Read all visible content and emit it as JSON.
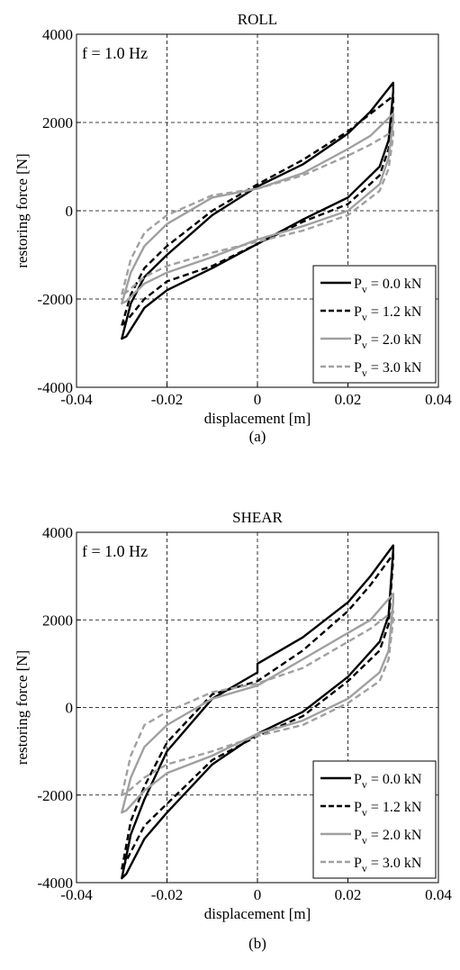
{
  "chart_data": [
    {
      "type": "line",
      "title": "ROLL",
      "xlabel": "displacement [m]",
      "ylabel": "restoring force [N]",
      "xlim": [
        -0.04,
        0.04
      ],
      "ylim": [
        -4000,
        4000
      ],
      "xticks": [
        -0.04,
        -0.02,
        0,
        0.02,
        0.04
      ],
      "yticks": [
        -4000,
        -2000,
        0,
        2000,
        4000
      ],
      "xtick_labels": [
        "-0.04",
        "-0.02",
        "0",
        "0.02",
        "0.04"
      ],
      "ytick_labels": [
        "-4000",
        "-2000",
        "0",
        "2000",
        "4000"
      ],
      "grid": "dashed",
      "annotation": "f = 1.0 Hz",
      "legend_position": "bottom-right",
      "caption": "(a)",
      "series": [
        {
          "name": "0.0 kN",
          "legend_label": "P",
          "legend_sub": "v",
          "legend_value": " = 0.0 kN",
          "color": "#000000",
          "dash": "solid",
          "upper": [
            [
              -0.03,
              -2900
            ],
            [
              -0.028,
              -2100
            ],
            [
              -0.025,
              -1500
            ],
            [
              -0.02,
              -1000
            ],
            [
              -0.01,
              -100
            ],
            [
              0,
              550
            ],
            [
              0.01,
              1050
            ],
            [
              0.02,
              1750
            ],
            [
              0.025,
              2250
            ],
            [
              0.03,
              2900
            ]
          ],
          "lower": [
            [
              0.03,
              2700
            ],
            [
              0.029,
              1600
            ],
            [
              0.027,
              1000
            ],
            [
              0.02,
              300
            ],
            [
              0.01,
              -200
            ],
            [
              0,
              -750
            ],
            [
              -0.01,
              -1300
            ],
            [
              -0.02,
              -1800
            ],
            [
              -0.025,
              -2200
            ],
            [
              -0.029,
              -2850
            ],
            [
              -0.03,
              -2900
            ]
          ]
        },
        {
          "name": "1.2 kN",
          "legend_label": "P",
          "legend_sub": "v",
          "legend_value": " = 1.2 kN",
          "color": "#000000",
          "dash": "dashed",
          "upper": [
            [
              -0.03,
              -2600
            ],
            [
              -0.028,
              -1900
            ],
            [
              -0.025,
              -1300
            ],
            [
              -0.02,
              -800
            ],
            [
              -0.01,
              0
            ],
            [
              0,
              600
            ],
            [
              0.01,
              1150
            ],
            [
              0.02,
              1800
            ],
            [
              0.025,
              2200
            ],
            [
              0.03,
              2600
            ]
          ],
          "lower": [
            [
              0.03,
              2400
            ],
            [
              0.029,
              1400
            ],
            [
              0.027,
              800
            ],
            [
              0.02,
              150
            ],
            [
              0.01,
              -250
            ],
            [
              0,
              -750
            ],
            [
              -0.01,
              -1250
            ],
            [
              -0.02,
              -1600
            ],
            [
              -0.025,
              -2000
            ],
            [
              -0.029,
              -2500
            ],
            [
              -0.03,
              -2600
            ]
          ]
        },
        {
          "name": "2.0 kN",
          "legend_label": "P",
          "legend_sub": "v",
          "legend_value": " = 2.0 kN",
          "color": "#a0a0a0",
          "dash": "solid",
          "upper": [
            [
              -0.03,
              -2100
            ],
            [
              -0.028,
              -1400
            ],
            [
              -0.025,
              -800
            ],
            [
              -0.02,
              -300
            ],
            [
              -0.01,
              300
            ],
            [
              0,
              500
            ],
            [
              0.01,
              850
            ],
            [
              0.02,
              1400
            ],
            [
              0.025,
              1700
            ],
            [
              0.03,
              2200
            ]
          ],
          "lower": [
            [
              0.03,
              2050
            ],
            [
              0.029,
              1200
            ],
            [
              0.027,
              600
            ],
            [
              0.02,
              0
            ],
            [
              0.01,
              -350
            ],
            [
              0,
              -650
            ],
            [
              -0.01,
              -1050
            ],
            [
              -0.02,
              -1400
            ],
            [
              -0.025,
              -1650
            ],
            [
              -0.029,
              -2050
            ],
            [
              -0.03,
              -2100
            ]
          ]
        },
        {
          "name": "3.0 kN",
          "legend_label": "P",
          "legend_sub": "v",
          "legend_value": " = 3.0 kN",
          "color": "#a0a0a0",
          "dash": "dashed",
          "upper": [
            [
              -0.03,
              -1900
            ],
            [
              -0.028,
              -1100
            ],
            [
              -0.025,
              -500
            ],
            [
              -0.02,
              -100
            ],
            [
              -0.01,
              350
            ],
            [
              0,
              500
            ],
            [
              0.01,
              800
            ],
            [
              0.02,
              1250
            ],
            [
              0.025,
              1500
            ],
            [
              0.03,
              1800
            ]
          ],
          "lower": [
            [
              0.03,
              1700
            ],
            [
              0.029,
              950
            ],
            [
              0.027,
              450
            ],
            [
              0.02,
              -100
            ],
            [
              0.01,
              -450
            ],
            [
              0,
              -700
            ],
            [
              -0.01,
              -950
            ],
            [
              -0.02,
              -1250
            ],
            [
              -0.025,
              -1500
            ],
            [
              -0.029,
              -1850
            ],
            [
              -0.03,
              -1900
            ]
          ]
        }
      ]
    },
    {
      "type": "line",
      "title": "SHEAR",
      "xlabel": "displacement [m]",
      "ylabel": "restoring force [N]",
      "xlim": [
        -0.04,
        0.04
      ],
      "ylim": [
        -4000,
        4000
      ],
      "xticks": [
        -0.04,
        -0.02,
        0,
        0.02,
        0.04
      ],
      "yticks": [
        -4000,
        -2000,
        0,
        2000,
        4000
      ],
      "xtick_labels": [
        "-0.04",
        "-0.02",
        "0",
        "0.02",
        "0.04"
      ],
      "ytick_labels": [
        "-4000",
        "-2000",
        "0",
        "2000",
        "4000"
      ],
      "grid": "dashed",
      "annotation": "f = 1.0 Hz",
      "legend_position": "bottom-right",
      "caption": "(b)",
      "series": [
        {
          "name": "0.0 kN",
          "legend_label": "P",
          "legend_sub": "v",
          "legend_value": " = 0.0 kN",
          "color": "#000000",
          "dash": "solid",
          "upper": [
            [
              -0.03,
              -3900
            ],
            [
              -0.028,
              -2900
            ],
            [
              -0.025,
              -2100
            ],
            [
              -0.02,
              -1000
            ],
            [
              -0.01,
              200
            ],
            [
              0,
              800
            ],
            [
              0,
              1000
            ],
            [
              0.01,
              1600
            ],
            [
              0.02,
              2400
            ],
            [
              0.025,
              3000
            ],
            [
              0.03,
              3700
            ]
          ],
          "lower": [
            [
              0.03,
              3600
            ],
            [
              0.029,
              2100
            ],
            [
              0.027,
              1500
            ],
            [
              0.02,
              700
            ],
            [
              0.01,
              -100
            ],
            [
              0,
              -600
            ],
            [
              -0.01,
              -1300
            ],
            [
              -0.02,
              -2400
            ],
            [
              -0.025,
              -3000
            ],
            [
              -0.029,
              -3800
            ],
            [
              -0.03,
              -3900
            ]
          ]
        },
        {
          "name": "1.2 kN",
          "legend_label": "P",
          "legend_sub": "v",
          "legend_value": " = 1.2 kN",
          "color": "#000000",
          "dash": "dashed",
          "upper": [
            [
              -0.03,
              -3700
            ],
            [
              -0.028,
              -2600
            ],
            [
              -0.025,
              -1800
            ],
            [
              -0.02,
              -800
            ],
            [
              -0.01,
              300
            ],
            [
              0,
              600
            ],
            [
              0.01,
              1300
            ],
            [
              0.02,
              2200
            ],
            [
              0.025,
              2800
            ],
            [
              0.03,
              3500
            ]
          ],
          "lower": [
            [
              0.03,
              3400
            ],
            [
              0.029,
              1900
            ],
            [
              0.027,
              1300
            ],
            [
              0.02,
              600
            ],
            [
              0.01,
              -200
            ],
            [
              0,
              -650
            ],
            [
              -0.01,
              -1200
            ],
            [
              -0.02,
              -2200
            ],
            [
              -0.025,
              -2700
            ],
            [
              -0.029,
              -3500
            ],
            [
              -0.03,
              -3700
            ]
          ]
        },
        {
          "name": "2.0 kN",
          "legend_label": "P",
          "legend_sub": "v",
          "legend_value": " = 2.0 kN",
          "color": "#a0a0a0",
          "dash": "solid",
          "upper": [
            [
              -0.03,
              -2400
            ],
            [
              -0.028,
              -1600
            ],
            [
              -0.025,
              -900
            ],
            [
              -0.02,
              -400
            ],
            [
              -0.01,
              200
            ],
            [
              0,
              500
            ],
            [
              0.01,
              1100
            ],
            [
              0.02,
              1700
            ],
            [
              0.025,
              2000
            ],
            [
              0.03,
              2600
            ]
          ],
          "lower": [
            [
              0.03,
              2400
            ],
            [
              0.029,
              1300
            ],
            [
              0.027,
              800
            ],
            [
              0.02,
              200
            ],
            [
              0.01,
              -300
            ],
            [
              0,
              -600
            ],
            [
              -0.01,
              -1100
            ],
            [
              -0.02,
              -1500
            ],
            [
              -0.025,
              -1900
            ],
            [
              -0.029,
              -2350
            ],
            [
              -0.03,
              -2400
            ]
          ]
        },
        {
          "name": "3.0 kN",
          "legend_label": "P",
          "legend_sub": "v",
          "legend_value": " = 3.0 kN",
          "color": "#a0a0a0",
          "dash": "dashed",
          "upper": [
            [
              -0.03,
              -2000
            ],
            [
              -0.028,
              -1100
            ],
            [
              -0.025,
              -400
            ],
            [
              -0.02,
              -100
            ],
            [
              -0.01,
              350
            ],
            [
              0,
              550
            ],
            [
              0.01,
              900
            ],
            [
              0.02,
              1500
            ],
            [
              0.025,
              1800
            ],
            [
              0.03,
              2200
            ]
          ],
          "lower": [
            [
              0.03,
              2000
            ],
            [
              0.029,
              1100
            ],
            [
              0.027,
              600
            ],
            [
              0.02,
              100
            ],
            [
              0.01,
              -400
            ],
            [
              0,
              -650
            ],
            [
              -0.01,
              -1000
            ],
            [
              -0.02,
              -1300
            ],
            [
              -0.025,
              -1600
            ],
            [
              -0.029,
              -1950
            ],
            [
              -0.03,
              -2000
            ]
          ]
        }
      ]
    }
  ]
}
